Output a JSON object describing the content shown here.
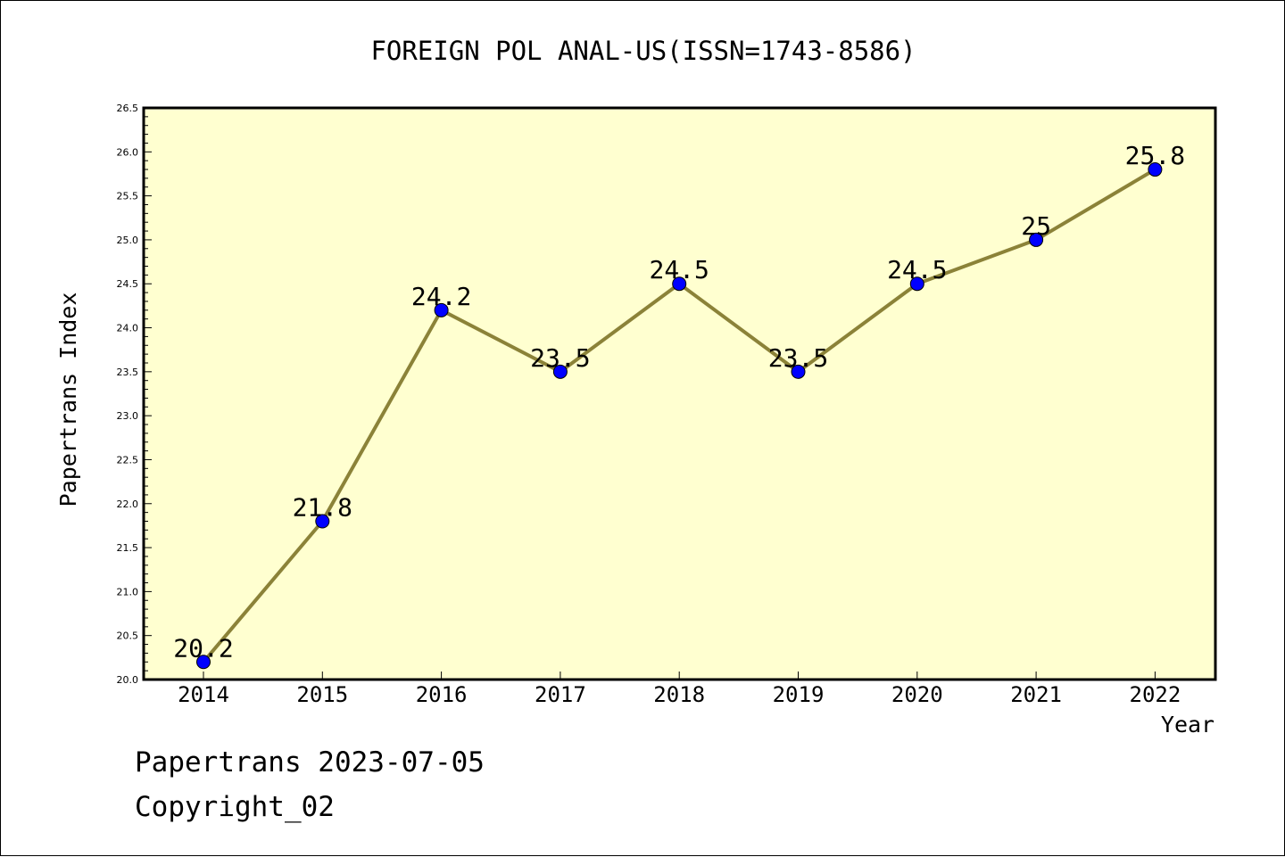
{
  "chart_data": {
    "type": "line",
    "title": "FOREIGN POL ANAL-US(ISSN=1743-8586)",
    "xlabel": "Year",
    "ylabel": "Papertrans Index",
    "categories": [
      "2014",
      "2015",
      "2016",
      "2017",
      "2018",
      "2019",
      "2020",
      "2021",
      "2022"
    ],
    "values": [
      20.2,
      21.8,
      24.2,
      23.5,
      24.5,
      23.5,
      24.5,
      25,
      25.8
    ],
    "data_labels": [
      "20.2",
      "21.8",
      "24.2",
      "23.5",
      "24.5",
      "23.5",
      "24.5",
      "25",
      "25.8"
    ],
    "ylim": [
      20.0,
      26.5
    ],
    "yticks": [
      "20.0",
      "20.5",
      "21.0",
      "21.5",
      "22.0",
      "22.5",
      "23.0",
      "23.5",
      "24.0",
      "24.5",
      "25.0",
      "25.5",
      "26.0",
      "26.5"
    ],
    "grid": false,
    "colors": {
      "plot_background": "#ffffd0",
      "line": "#8b8238",
      "marker": "#0000ff"
    }
  },
  "footer": {
    "line1": "Papertrans 2023-07-05",
    "line2": "Copyright_02"
  }
}
